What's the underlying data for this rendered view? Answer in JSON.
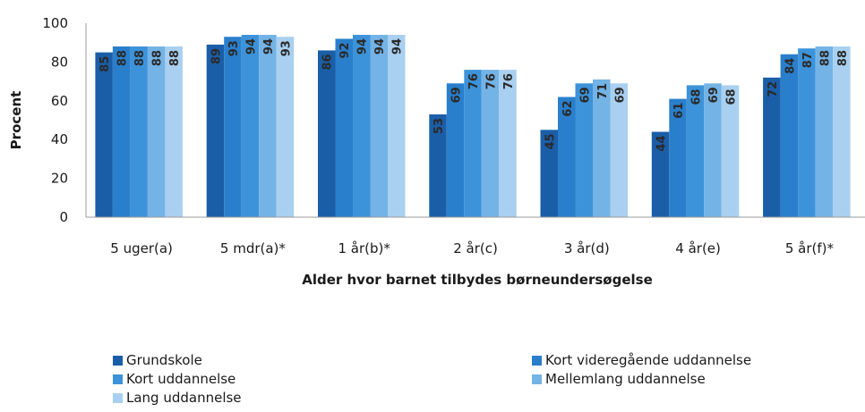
{
  "chart_data": {
    "type": "bar",
    "title": "",
    "xlabel": "Alder hvor barnet tilbydes børneundersøgelse",
    "ylabel": "Procent",
    "ylim": [
      0,
      100
    ],
    "yticks": [
      0,
      20,
      40,
      60,
      80,
      100
    ],
    "grid": false,
    "legend_position": "bottom",
    "categories": [
      "5 uger(a)",
      "5 mdr(a)*",
      "1 år(b)*",
      "2 år(c)",
      "3 år(d)",
      "4 år(e)",
      "5 år(f)*"
    ],
    "series": [
      {
        "name": "Grundskole",
        "color": "#1b5ea8",
        "values": [
          85,
          89,
          86,
          53,
          45,
          44,
          72
        ]
      },
      {
        "name": "Kort videregående uddannelse",
        "color": "#2a7fcc",
        "values": [
          88,
          93,
          92,
          69,
          62,
          61,
          84
        ]
      },
      {
        "name": "Kort uddannelse",
        "color": "#3d93d9",
        "values": [
          88,
          94,
          94,
          76,
          69,
          68,
          87
        ]
      },
      {
        "name": "Mellemlang uddannelse",
        "color": "#74b3e6",
        "values": [
          88,
          94,
          94,
          76,
          71,
          69,
          88
        ]
      },
      {
        "name": "Lang uddannelse",
        "color": "#a9d0f0",
        "values": [
          88,
          93,
          94,
          76,
          69,
          68,
          88
        ]
      }
    ]
  }
}
